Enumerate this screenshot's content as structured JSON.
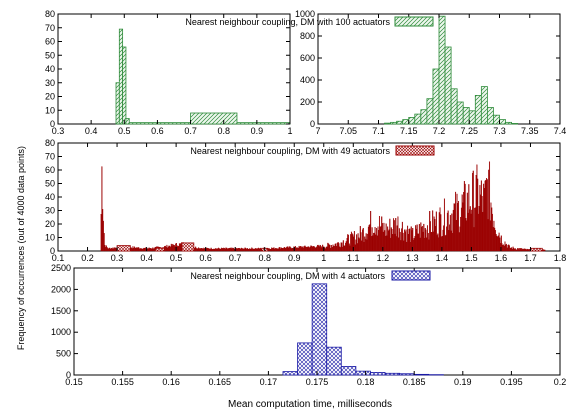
{
  "ylabel": "Frequency of occurrences (out of 4000 data points)",
  "xlabel": "Mean computation time, milliseconds",
  "colors": {
    "green": "#2e8b3a",
    "red": "#9b0000",
    "blue": "#1a1aa6"
  },
  "chart_data": [
    {
      "type": "bar",
      "legend": "Nearest neighbour coupling, DM with 100 actuators",
      "legend_position": "top-right",
      "fill": "hatch-diagonal",
      "color": "green",
      "subplots": [
        {
          "xlim": [
            0.3,
            1.0
          ],
          "ylim": [
            0,
            80
          ],
          "xticks": [
            "0.3",
            "0.4",
            "0.5",
            "0.6",
            "0.7",
            "0.8",
            "0.9",
            "1"
          ],
          "yticks": [
            "0",
            "10",
            "20",
            "30",
            "40",
            "50",
            "60",
            "70",
            "80"
          ],
          "bins": [
            {
              "x0": 0.475,
              "x1": 0.485,
              "y": 30
            },
            {
              "x0": 0.485,
              "x1": 0.495,
              "y": 69
            },
            {
              "x0": 0.495,
              "x1": 0.505,
              "y": 56
            },
            {
              "x0": 0.505,
              "x1": 0.515,
              "y": 4
            },
            {
              "x0": 0.515,
              "x1": 0.7,
              "y": 1
            },
            {
              "x0": 0.7,
              "x1": 0.84,
              "y": 8
            },
            {
              "x0": 0.84,
              "x1": 1.0,
              "y": 1
            }
          ]
        },
        {
          "xlim": [
            7.0,
            7.4
          ],
          "ylim": [
            0,
            1000
          ],
          "xticks": [
            "7",
            "7.05",
            "7.1",
            "7.15",
            "7.2",
            "7.25",
            "7.3",
            "7.35",
            "7.4"
          ],
          "yticks": [
            "0",
            "200",
            "400",
            "600",
            "800",
            "1000"
          ],
          "bins": [
            {
              "x0": 7.11,
              "x1": 7.12,
              "y": 8
            },
            {
              "x0": 7.12,
              "x1": 7.13,
              "y": 15
            },
            {
              "x0": 7.13,
              "x1": 7.14,
              "y": 25
            },
            {
              "x0": 7.14,
              "x1": 7.15,
              "y": 40
            },
            {
              "x0": 7.15,
              "x1": 7.16,
              "y": 60
            },
            {
              "x0": 7.16,
              "x1": 7.17,
              "y": 90
            },
            {
              "x0": 7.17,
              "x1": 7.18,
              "y": 130
            },
            {
              "x0": 7.18,
              "x1": 7.19,
              "y": 230
            },
            {
              "x0": 7.19,
              "x1": 7.2,
              "y": 500
            },
            {
              "x0": 7.2,
              "x1": 7.21,
              "y": 980
            },
            {
              "x0": 7.21,
              "x1": 7.22,
              "y": 700
            },
            {
              "x0": 7.22,
              "x1": 7.23,
              "y": 320
            },
            {
              "x0": 7.23,
              "x1": 7.24,
              "y": 200
            },
            {
              "x0": 7.24,
              "x1": 7.25,
              "y": 150
            },
            {
              "x0": 7.25,
              "x1": 7.26,
              "y": 120
            },
            {
              "x0": 7.26,
              "x1": 7.27,
              "y": 260
            },
            {
              "x0": 7.27,
              "x1": 7.28,
              "y": 340
            },
            {
              "x0": 7.28,
              "x1": 7.29,
              "y": 150
            },
            {
              "x0": 7.29,
              "x1": 7.3,
              "y": 80
            },
            {
              "x0": 7.3,
              "x1": 7.31,
              "y": 40
            },
            {
              "x0": 7.31,
              "x1": 7.32,
              "y": 15
            },
            {
              "x0": 7.32,
              "x1": 7.33,
              "y": 5
            }
          ]
        }
      ]
    },
    {
      "type": "bar",
      "legend": "Nearest neighbour coupling, DM with 49 actuators",
      "legend_position": "top-right",
      "fill": "hatch-cross",
      "color": "red",
      "xlim": [
        0.1,
        1.8
      ],
      "ylim": [
        0,
        80
      ],
      "xticks": [
        "0.1",
        "0.2",
        "0.3",
        "0.4",
        "0.5",
        "0.6",
        "0.7",
        "0.8",
        "0.9",
        "1",
        "1.1",
        "1.2",
        "1.3",
        "1.4",
        "1.5",
        "1.6",
        "1.7",
        "1.8"
      ],
      "yticks": [
        "0",
        "10",
        "20",
        "30",
        "40",
        "50",
        "60",
        "70",
        "80"
      ],
      "profile": [
        [
          0.245,
          0
        ],
        [
          0.248,
          73
        ],
        [
          0.252,
          40
        ],
        [
          0.258,
          5
        ],
        [
          0.27,
          2
        ],
        [
          0.3,
          3
        ],
        [
          0.35,
          3
        ],
        [
          0.4,
          2
        ],
        [
          0.45,
          3
        ],
        [
          0.5,
          5
        ],
        [
          0.53,
          6
        ],
        [
          0.56,
          3
        ],
        [
          0.6,
          2
        ],
        [
          0.7,
          2
        ],
        [
          0.8,
          2
        ],
        [
          0.9,
          3
        ],
        [
          1.0,
          4
        ],
        [
          1.05,
          7
        ],
        [
          1.1,
          12
        ],
        [
          1.13,
          16
        ],
        [
          1.17,
          28
        ],
        [
          1.21,
          19
        ],
        [
          1.25,
          25
        ],
        [
          1.3,
          14
        ],
        [
          1.34,
          22
        ],
        [
          1.38,
          26
        ],
        [
          1.42,
          33
        ],
        [
          1.46,
          38
        ],
        [
          1.49,
          46
        ],
        [
          1.52,
          52
        ],
        [
          1.545,
          45
        ],
        [
          1.555,
          62
        ],
        [
          1.565,
          48
        ],
        [
          1.58,
          28
        ],
        [
          1.6,
          12
        ],
        [
          1.63,
          3
        ],
        [
          1.66,
          2
        ],
        [
          1.7,
          1
        ],
        [
          1.75,
          1
        ]
      ],
      "open_bins": [
        {
          "x0": 0.3,
          "x1": 0.345,
          "y": 4
        },
        {
          "x0": 0.43,
          "x1": 0.46,
          "y": 2
        },
        {
          "x0": 0.52,
          "x1": 0.56,
          "y": 6
        },
        {
          "x0": 0.79,
          "x1": 0.81,
          "y": 2
        },
        {
          "x0": 1.7,
          "x1": 1.74,
          "y": 2
        }
      ]
    },
    {
      "type": "bar",
      "legend": "Nearest neighbour coupling, DM with 4 actuators",
      "legend_position": "top-right",
      "fill": "hatch-cross",
      "color": "blue",
      "xlim": [
        0.15,
        0.2
      ],
      "ylim": [
        0,
        2500
      ],
      "xticks": [
        "0.15",
        "0.155",
        "0.16",
        "0.165",
        "0.17",
        "0.175",
        "0.18",
        "0.185",
        "0.19",
        "0.195",
        "0.2"
      ],
      "yticks": [
        "0",
        "500",
        "1000",
        "1500",
        "2000",
        "2500"
      ],
      "bins": [
        {
          "x0": 0.1715,
          "x1": 0.173,
          "y": 80
        },
        {
          "x0": 0.173,
          "x1": 0.1745,
          "y": 750
        },
        {
          "x0": 0.1745,
          "x1": 0.176,
          "y": 2130
        },
        {
          "x0": 0.176,
          "x1": 0.1775,
          "y": 650
        },
        {
          "x0": 0.1775,
          "x1": 0.179,
          "y": 200
        },
        {
          "x0": 0.179,
          "x1": 0.1805,
          "y": 90
        },
        {
          "x0": 0.1805,
          "x1": 0.182,
          "y": 60
        },
        {
          "x0": 0.182,
          "x1": 0.1835,
          "y": 40
        },
        {
          "x0": 0.1835,
          "x1": 0.185,
          "y": 30
        },
        {
          "x0": 0.185,
          "x1": 0.1865,
          "y": 15
        },
        {
          "x0": 0.1865,
          "x1": 0.188,
          "y": 8
        }
      ]
    }
  ]
}
